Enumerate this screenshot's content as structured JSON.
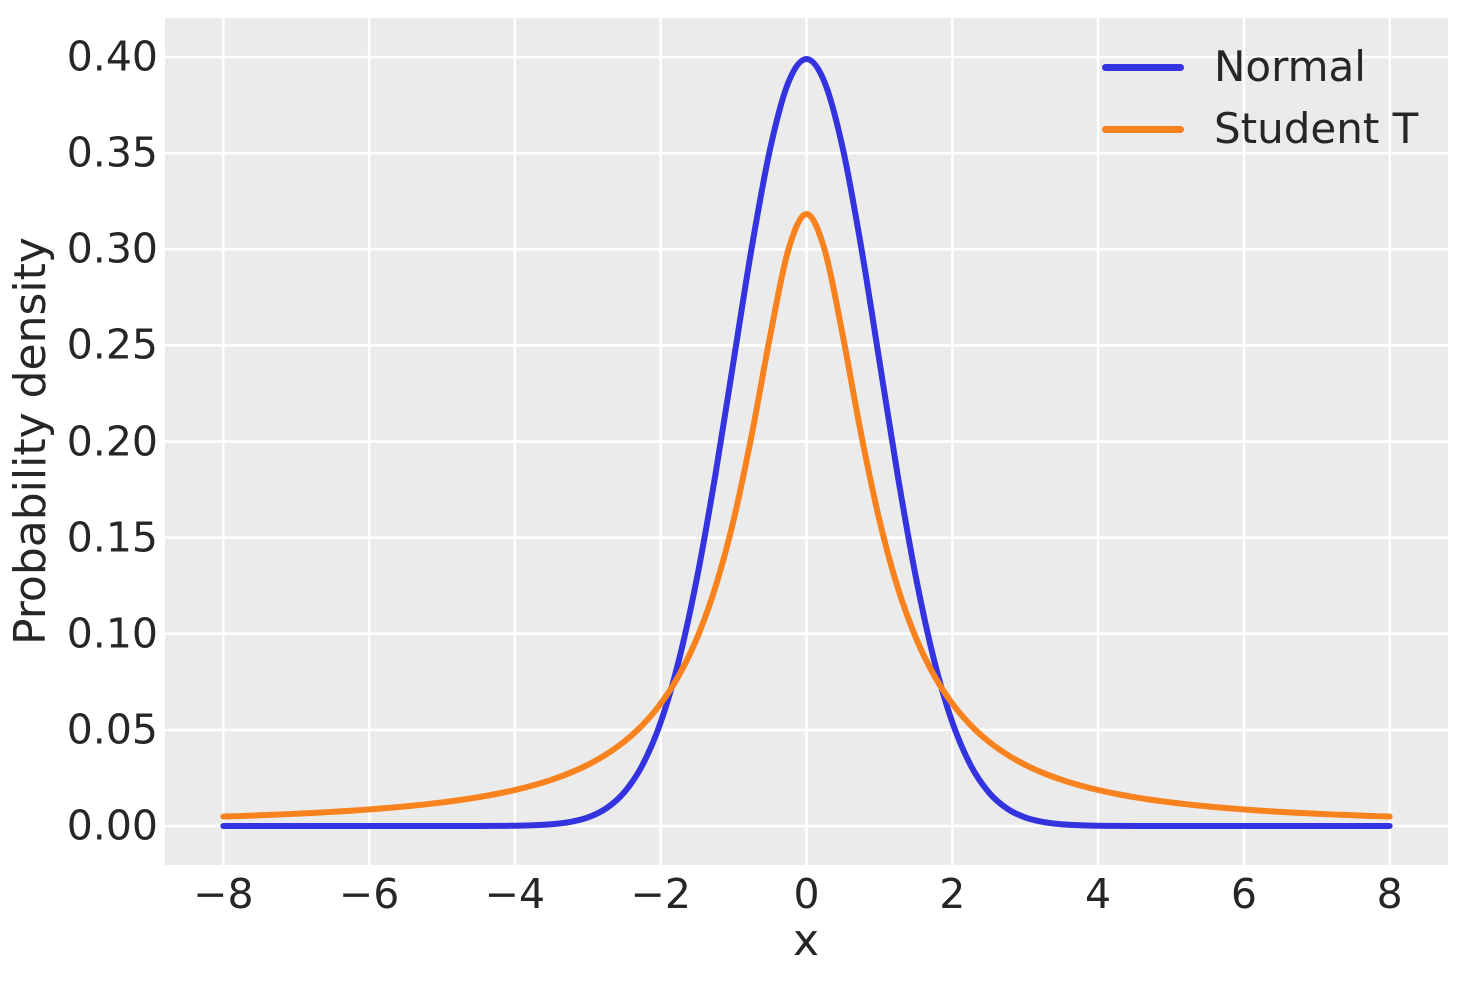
{
  "figure": {
    "background": "#ffffff",
    "plot_background": "#ebebeb",
    "grid_color": "#ffffff",
    "text_color": "#262626"
  },
  "chart_data": {
    "type": "line",
    "title": "",
    "xlabel": "x",
    "ylabel": "Probability density",
    "grid": true,
    "legend": {
      "position": "upper right",
      "frame": false
    },
    "xlim": [
      -8.8,
      8.8
    ],
    "ylim": [
      -0.0203,
      0.4203
    ],
    "x_ticks": [
      -8,
      -6,
      -4,
      -2,
      0,
      2,
      4,
      6,
      8
    ],
    "x_tick_labels": [
      "−8",
      "−6",
      "−4",
      "−2",
      "0",
      "2",
      "4",
      "6",
      "8"
    ],
    "y_ticks": [
      0.0,
      0.05,
      0.1,
      0.15,
      0.2,
      0.25,
      0.3,
      0.35,
      0.4
    ],
    "y_tick_labels": [
      "0.00",
      "0.05",
      "0.10",
      "0.15",
      "0.20",
      "0.25",
      "0.30",
      "0.35",
      "0.40"
    ],
    "x": [
      -8,
      -7.75,
      -7.5,
      -7.25,
      -7,
      -6.75,
      -6.5,
      -6.25,
      -6,
      -5.75,
      -5.5,
      -5.25,
      -5,
      -4.75,
      -4.5,
      -4.25,
      -4,
      -3.75,
      -3.5,
      -3.25,
      -3,
      -2.75,
      -2.5,
      -2.25,
      -2,
      -1.75,
      -1.5,
      -1.25,
      -1,
      -0.75,
      -0.5,
      -0.25,
      0,
      0.25,
      0.5,
      0.75,
      1,
      1.25,
      1.5,
      1.75,
      2,
      2.25,
      2.5,
      2.75,
      3,
      3.25,
      3.5,
      3.75,
      4,
      4.25,
      4.5,
      4.75,
      5,
      5.25,
      5.5,
      5.75,
      6,
      6.25,
      6.5,
      6.75,
      7,
      7.25,
      7.5,
      7.75,
      8
    ],
    "series": [
      {
        "name": "Normal",
        "color": "#3333E0",
        "peak": 0.39894,
        "values": [
          0,
          0,
          0,
          0,
          0,
          0,
          0,
          0,
          0,
          0,
          0,
          0,
          0,
          1e-05,
          2e-05,
          5e-05,
          0.00013,
          0.00035,
          0.00087,
          0.00203,
          0.00443,
          0.00909,
          0.01753,
          0.03174,
          0.05399,
          0.08628,
          0.12952,
          0.18265,
          0.24197,
          0.30114,
          0.35207,
          0.38667,
          0.39894,
          0.38667,
          0.35207,
          0.30114,
          0.24197,
          0.18265,
          0.12952,
          0.08628,
          0.05399,
          0.03174,
          0.01753,
          0.00909,
          0.00443,
          0.00203,
          0.00087,
          0.00035,
          0.00013,
          5e-05,
          2e-05,
          1e-05,
          0,
          0,
          0,
          0,
          0,
          0,
          0,
          0,
          0,
          0,
          0,
          0,
          0
        ]
      },
      {
        "name": "Student T",
        "color": "#F8821D",
        "peak": 0.31831,
        "values": [
          0.0049,
          0.00521,
          0.00556,
          0.00594,
          0.00637,
          0.00684,
          0.00736,
          0.00794,
          0.0086,
          0.00934,
          0.01019,
          0.01114,
          0.01224,
          0.01351,
          0.01498,
          0.0167,
          0.01872,
          0.02113,
          0.02402,
          0.02753,
          0.03183,
          0.03718,
          0.0439,
          0.05251,
          0.06366,
          0.07835,
          0.09794,
          0.12422,
          0.15915,
          0.20372,
          0.25465,
          0.29958,
          0.31831,
          0.29958,
          0.25465,
          0.20372,
          0.15915,
          0.12422,
          0.09794,
          0.07835,
          0.06366,
          0.05251,
          0.0439,
          0.03718,
          0.03183,
          0.02753,
          0.02402,
          0.02113,
          0.01872,
          0.0167,
          0.01498,
          0.01351,
          0.01224,
          0.01114,
          0.01019,
          0.00934,
          0.0086,
          0.00794,
          0.00736,
          0.00684,
          0.00637,
          0.00594,
          0.00556,
          0.00521,
          0.0049
        ]
      }
    ]
  }
}
